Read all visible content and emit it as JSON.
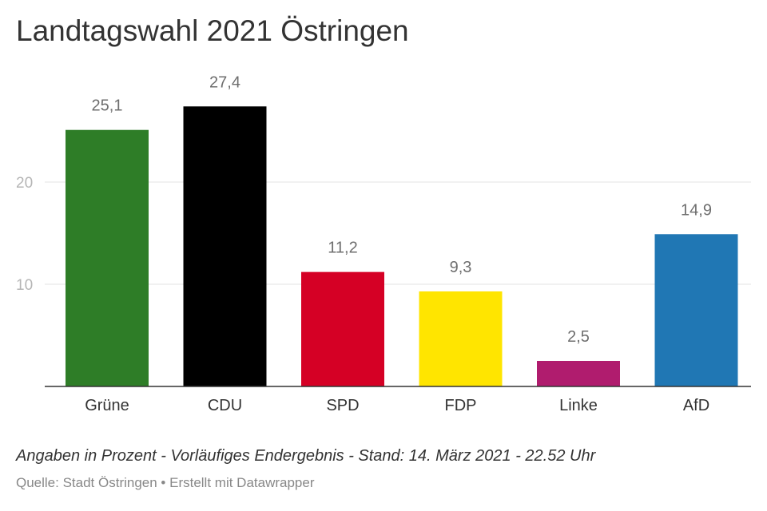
{
  "chart_data": {
    "type": "bar",
    "title": "Landtagswahl 2021 Östringen",
    "categories": [
      "Grüne",
      "CDU",
      "SPD",
      "FDP",
      "Linke",
      "AfD"
    ],
    "values": [
      25.1,
      27.4,
      11.2,
      9.3,
      2.5,
      14.9
    ],
    "value_labels": [
      "25,1",
      "27,4",
      "11,2",
      "9,3",
      "2,5",
      "14,9"
    ],
    "colors": [
      "#2e7d27",
      "#000000",
      "#d50025",
      "#ffe500",
      "#b01c6e",
      "#2077b4"
    ],
    "yticks": [
      10,
      20
    ],
    "ytick_labels": [
      "10",
      "20"
    ],
    "ylim": [
      0,
      28
    ],
    "grid": true,
    "legend": "none"
  },
  "notes": "Angaben in Prozent - Vorläufiges Endergebnis - Stand: 14. März 2021 - 22.52 Uhr",
  "source": "Quelle: Stadt Östringen • Erstellt mit Datawrapper"
}
